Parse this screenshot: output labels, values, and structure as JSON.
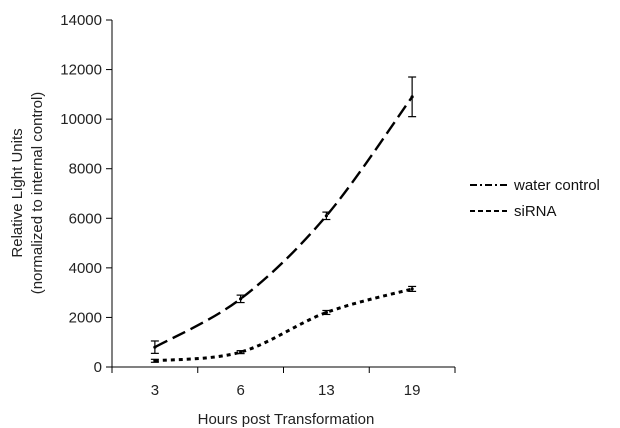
{
  "chart_data": {
    "type": "line",
    "title": "",
    "xlabel": "Hours post Transformation",
    "ylabel_line1": "Relative Light Units",
    "ylabel_line2": "(normalized to internal control)",
    "categories": [
      "3",
      "6",
      "13",
      "19"
    ],
    "ylim": [
      0,
      14000
    ],
    "yticks": [
      0,
      2000,
      4000,
      6000,
      8000,
      10000,
      12000,
      14000
    ],
    "grid": false,
    "legend_position": "right",
    "series": [
      {
        "name": "water control",
        "values": [
          800,
          2750,
          6100,
          10900
        ],
        "errors": [
          250,
          150,
          150,
          800
        ],
        "dash": "long-dash",
        "color": "#000000"
      },
      {
        "name": "siRNA",
        "values": [
          250,
          600,
          2200,
          3150
        ],
        "errors": [
          60,
          60,
          80,
          100
        ],
        "dash": "dotted",
        "color": "#000000"
      }
    ]
  }
}
